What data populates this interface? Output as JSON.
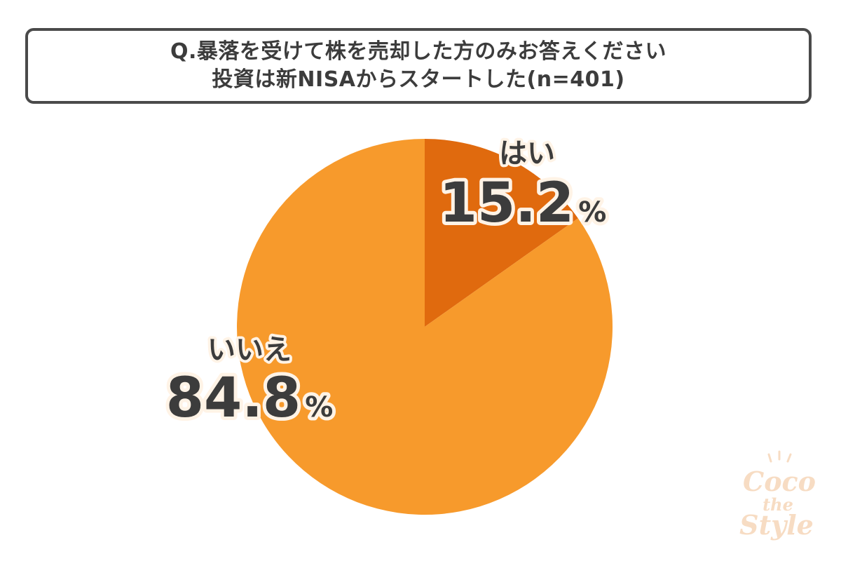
{
  "title": {
    "line1": "Q.暴落を受けて株を売却した方のみお答えください",
    "line2": "投資は新NISAからスタートした(n=401)"
  },
  "colors": {
    "yes": "#e06a0e",
    "no": "#f79a2c",
    "text": "#3c3c3c",
    "border": "#4a4a4a"
  },
  "watermark": [
    "Coco",
    "the",
    "Style"
  ],
  "chart_data": {
    "type": "pie",
    "title": "Q.暴落を受けて株を売却した方のみお答えください 投資は新NISAからスタートした(n=401)",
    "unit": "%",
    "slices": [
      {
        "label": "はい",
        "value": 15.2,
        "value_text": "15.2",
        "color": "#e06a0e"
      },
      {
        "label": "いいえ",
        "value": 84.8,
        "value_text": "84.8",
        "color": "#f79a2c"
      }
    ]
  }
}
